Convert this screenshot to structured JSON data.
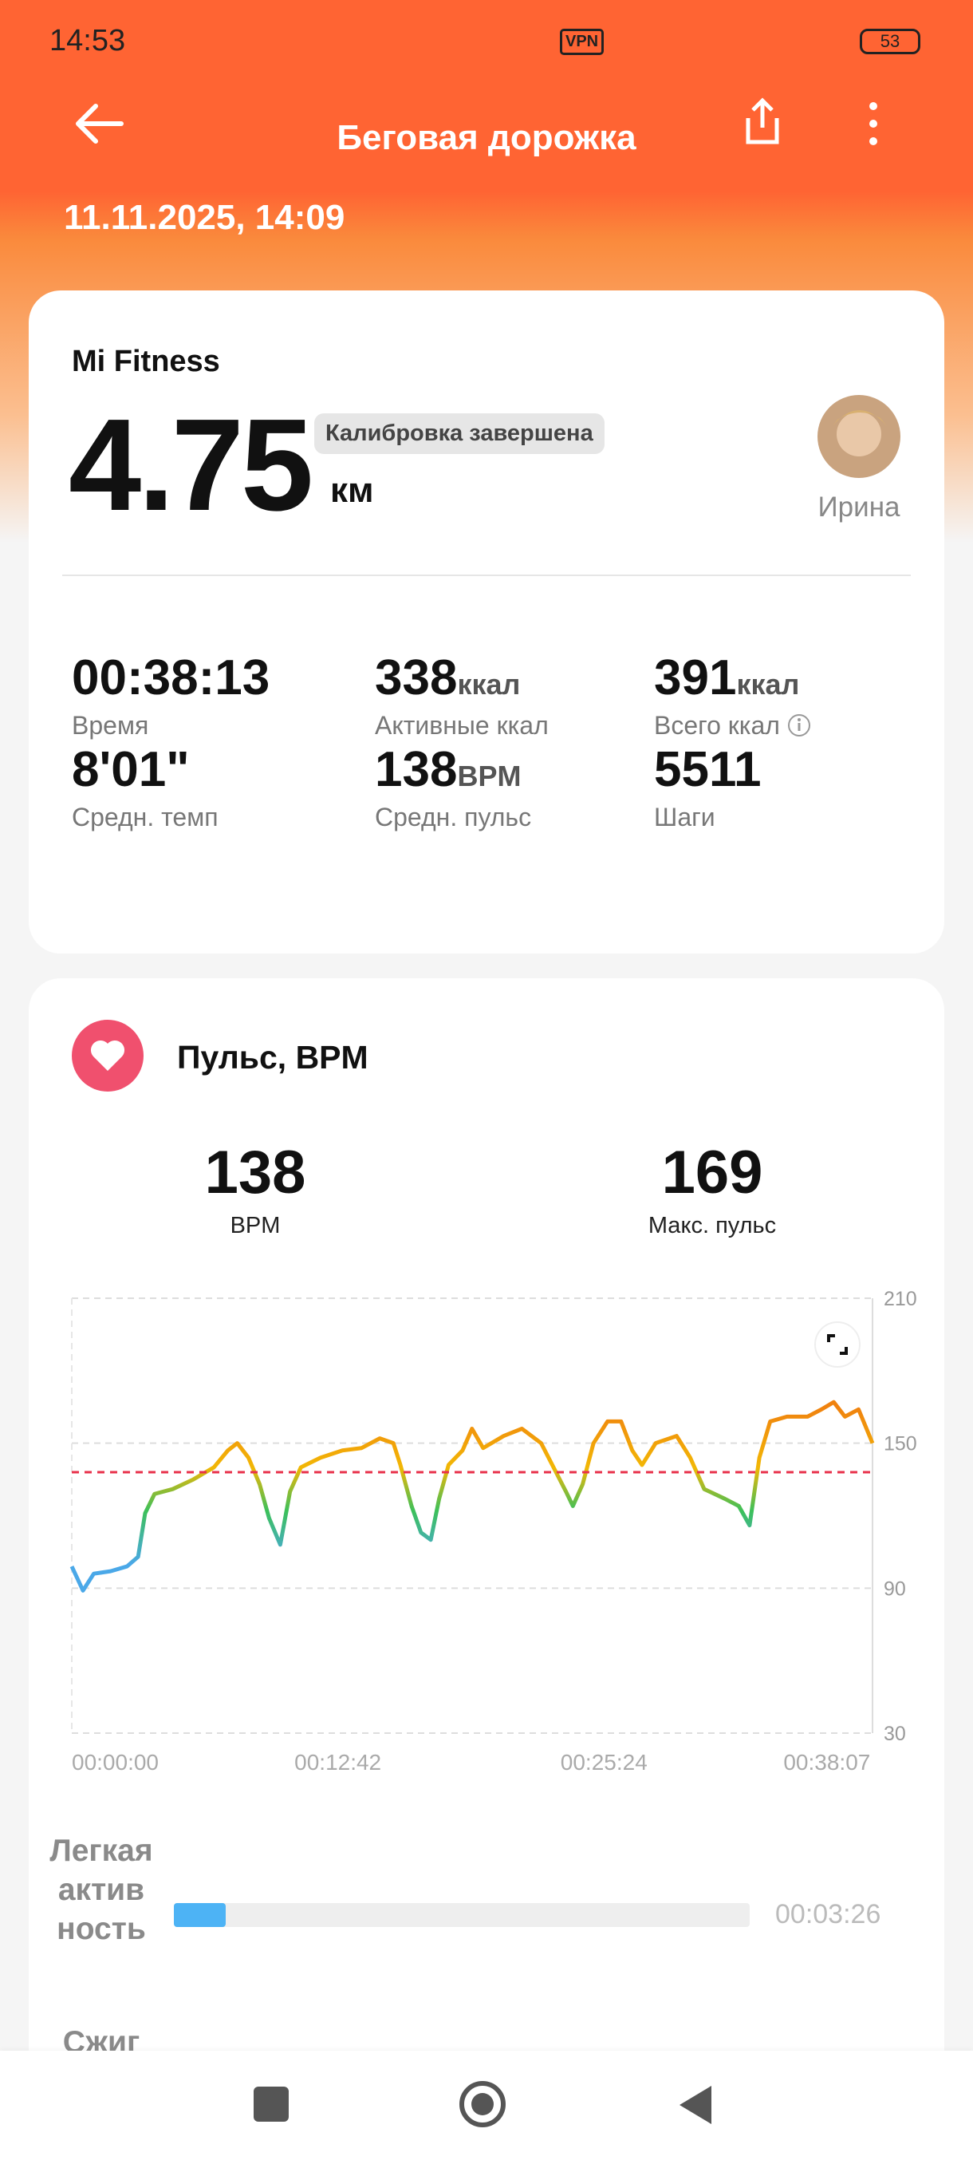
{
  "status_bar": {
    "time": "14:53",
    "vpn": "VPN",
    "battery": "53"
  },
  "header": {
    "title": "Беговая дорожка",
    "date": "11.11.2025, 14:09"
  },
  "summary": {
    "source": "Mi Fitness",
    "distance": 4.75,
    "distance_unit": "км",
    "badge": "Калибровка завершена",
    "user_name": "Ирина",
    "stats": [
      {
        "value": "00:38:13",
        "label": "Время"
      },
      {
        "value": 338,
        "unit": "ккал",
        "label": "Активные ккал"
      },
      {
        "value": 391,
        "unit": "ккал",
        "label": "Всего ккал"
      },
      {
        "value": "8'01\"",
        "label": "Средн. темп"
      },
      {
        "value": 138,
        "unit": "BPM",
        "label": "Средн. пульс"
      },
      {
        "value": 5511,
        "label": "Шаги"
      }
    ]
  },
  "heart": {
    "title": "Пульс, BPM",
    "avg": 138,
    "avg_label": "BPM",
    "max": 169,
    "max_label": "Макс. пульс",
    "avg_line_color": "#e8304a",
    "chart_data": {
      "type": "line",
      "x": [
        0,
        32,
        63,
        111,
        158,
        190,
        210,
        237,
        289,
        348,
        407,
        447,
        474,
        506,
        538,
        565,
        597,
        625,
        656,
        712,
        775,
        830,
        882,
        921,
        941,
        973,
        1000,
        1028,
        1052,
        1079,
        1119,
        1146,
        1178,
        1237,
        1289,
        1344,
        1376,
        1415,
        1435,
        1463,
        1494,
        1534,
        1573,
        1605,
        1633,
        1672,
        1732,
        1771,
        1811,
        1870,
        1910,
        1941,
        1969,
        2000,
        2048,
        2107,
        2147,
        2182,
        2214,
        2253,
        2293
      ],
      "values": [
        99,
        89,
        96,
        97,
        99,
        103,
        121,
        129,
        131,
        135,
        140,
        147,
        150,
        144,
        133,
        119,
        108,
        130,
        140,
        144,
        147,
        148,
        152,
        150,
        141,
        124,
        113,
        110,
        127,
        141,
        147,
        156,
        148,
        153,
        156,
        150,
        141,
        130,
        124,
        133,
        150,
        159,
        159,
        147,
        141,
        150,
        153,
        144,
        131,
        127,
        124,
        116,
        144,
        159,
        161,
        161,
        164,
        167,
        161,
        164,
        150
      ],
      "xlim": [
        0,
        2293
      ],
      "xticks": [
        {
          "value": 0,
          "label": "00:00:00"
        },
        {
          "value": 762,
          "label": "00:12:42"
        },
        {
          "value": 1524,
          "label": "00:25:24"
        },
        {
          "value": 2287,
          "label": "00:38:07"
        }
      ],
      "ylim": [
        30,
        210
      ],
      "yticks": [
        30,
        90,
        150,
        210
      ],
      "grid": true,
      "color_scale": [
        {
          "value": 100,
          "color": "#4aa8e8"
        },
        {
          "value": 122,
          "color": "#3cc05a"
        },
        {
          "value": 140,
          "color": "#f2b705"
        },
        {
          "value": 165,
          "color": "#f0820f"
        }
      ]
    }
  },
  "zones": [
    {
      "label": "Легкая активность",
      "duration": "00:03:26",
      "color": "#4db3f5"
    },
    {
      "label": "Сжиг"
    }
  ]
}
